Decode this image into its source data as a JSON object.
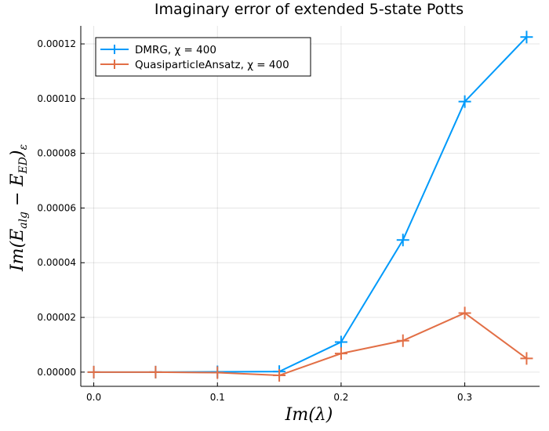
{
  "chart_data": {
    "type": "line",
    "title": "Imaginary error of extended 5-state Potts",
    "xlabel_parts": [
      "Im(λ)"
    ],
    "ylabel_parts": [
      "Im(E",
      "alg",
      " − E",
      "ED",
      ")",
      "ε"
    ],
    "xlim": [
      -0.0105,
      0.3605
    ],
    "ylim": [
      -5.2e-06,
      0.0001266
    ],
    "x_ticks": [
      0.0,
      0.1,
      0.2,
      0.3
    ],
    "x_tick_labels": [
      "0.0",
      "0.1",
      "0.2",
      "0.3"
    ],
    "y_ticks": [
      0,
      2e-05,
      4e-05,
      6e-05,
      8e-05,
      0.0001,
      0.00012
    ],
    "y_tick_labels": [
      "0.00000",
      "0.00002",
      "0.00004",
      "0.00006",
      "0.00008",
      "0.00010",
      "0.00012"
    ],
    "grid": true,
    "legend_position": "top-left",
    "x": [
      0.0,
      0.05,
      0.1,
      0.15,
      0.2,
      0.25,
      0.3,
      0.35
    ],
    "series": [
      {
        "name": "DMRG, χ = 400",
        "color": "#009AFA",
        "marker": "cross",
        "values": [
          0.0,
          0.0,
          1e-07,
          2e-07,
          1.1e-05,
          4.83e-05,
          9.89e-05,
          0.0001225
        ]
      },
      {
        "name": "QuasiparticleAnsatz, χ = 400",
        "color": "#E26F46",
        "marker": "cross",
        "values": [
          0.0,
          0.0,
          -2e-07,
          -1.2e-06,
          6.8e-06,
          1.15e-05,
          2.16e-05,
          5e-06
        ]
      }
    ]
  }
}
